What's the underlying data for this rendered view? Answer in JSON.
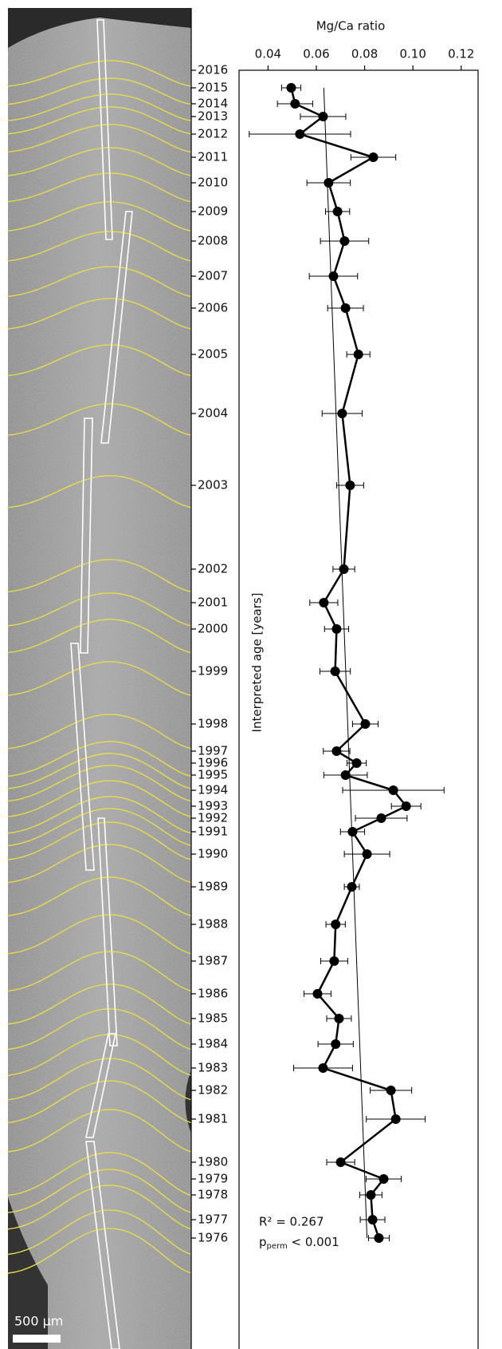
{
  "chart_data": {
    "type": "scatter",
    "x_label": "Mg/Ca ratio",
    "y_label": "Interpreted age [years]",
    "categories": [
      "2016",
      "2015",
      "2014",
      "2013",
      "2012",
      "2011",
      "2010",
      "2009",
      "2008",
      "2007",
      "2006",
      "2005",
      "2004",
      "2003",
      "2002",
      "2001",
      "2000",
      "1999",
      "1998",
      "1997",
      "1996",
      "1995",
      "1994",
      "1993",
      "1992",
      "1991",
      "1990",
      "1989",
      "1988",
      "1987",
      "1986",
      "1985",
      "1984",
      "1983",
      "1982",
      "1981",
      "1980",
      "1979",
      "1978",
      "1977",
      "1976"
    ],
    "values": [
      null,
      0.0496,
      0.0512,
      0.0628,
      0.0532,
      0.0836,
      0.0651,
      0.0688,
      0.0717,
      0.0671,
      0.0721,
      0.0774,
      0.0707,
      0.074,
      0.0714,
      0.0631,
      0.0684,
      0.0678,
      0.0803,
      0.0684,
      0.0767,
      0.0721,
      0.0919,
      0.0972,
      0.0869,
      0.075,
      0.081,
      0.0747,
      0.068,
      0.0674,
      0.0605,
      0.0694,
      0.068,
      0.0628,
      0.0909,
      0.0929,
      0.0701,
      0.0879,
      0.0826,
      0.0833,
      0.0859
    ],
    "errors": [
      null,
      0.004,
      0.0073,
      0.0094,
      0.021,
      0.0093,
      0.009,
      0.005,
      0.01,
      0.01,
      0.0074,
      0.0048,
      0.0083,
      0.0056,
      0.0045,
      0.0058,
      0.005,
      0.0063,
      0.0053,
      0.0055,
      0.004,
      0.009,
      0.021,
      0.0061,
      0.0107,
      0.005,
      0.0094,
      0.0031,
      0.004,
      0.0056,
      0.0056,
      0.0051,
      0.0073,
      0.0122,
      0.0086,
      0.0122,
      0.0058,
      0.0073,
      0.0046,
      0.0051,
      0.0043
    ],
    "color": "#000000",
    "trend_values": [
      0.0631,
      0.081
    ],
    "xlim": [
      0.028,
      0.127
    ],
    "xticks": [
      0.04,
      0.06,
      0.08,
      {
        "value": 0.1,
        "label": "0.10"
      },
      0.12
    ],
    "annotation_r2": "R² = 0.267",
    "annotation_p": {
      "symbol": "p",
      "subscript": "perm",
      "text": " < 0.001"
    },
    "scale_bar": "500 µm"
  }
}
